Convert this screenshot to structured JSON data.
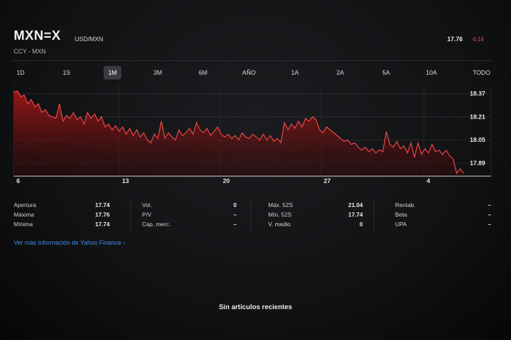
{
  "header": {
    "symbol": "MXN=X",
    "pair": "USD/MXN",
    "subtitle": "CCY - MXN",
    "price": "17.76",
    "change": "-0.14",
    "change_color": "#e05555"
  },
  "ranges": {
    "items": [
      "1D",
      "1S",
      "1M",
      "3M",
      "6M",
      "AÑO",
      "1A",
      "2A",
      "5A",
      "10A",
      "TODO"
    ],
    "selected": "1M"
  },
  "chart_data": {
    "type": "area",
    "x_ticks": [
      "6",
      "13",
      "20",
      "27",
      "4"
    ],
    "y_ticks": [
      "18.37",
      "18.21",
      "18.05",
      "17.89"
    ],
    "ylim": [
      17.8,
      18.43
    ],
    "color": "#e03030",
    "values": [
      18.38,
      18.39,
      18.35,
      18.36,
      18.3,
      18.33,
      18.28,
      18.3,
      18.24,
      18.26,
      18.22,
      18.21,
      18.2,
      18.3,
      18.18,
      18.22,
      18.2,
      18.24,
      18.19,
      18.21,
      18.16,
      18.24,
      18.2,
      18.23,
      18.18,
      18.21,
      18.14,
      18.16,
      18.12,
      18.15,
      18.11,
      18.14,
      18.09,
      18.13,
      18.08,
      18.12,
      18.07,
      18.1,
      18.05,
      18.03,
      18.09,
      18.06,
      18.18,
      18.06,
      18.1,
      18.07,
      18.05,
      18.12,
      18.08,
      18.1,
      18.13,
      18.09,
      18.17,
      18.12,
      18.1,
      18.13,
      18.08,
      18.11,
      18.14,
      18.09,
      18.07,
      18.09,
      18.06,
      18.08,
      18.05,
      18.1,
      18.07,
      18.06,
      18.09,
      18.07,
      18.05,
      18.09,
      18.05,
      18.08,
      18.04,
      18.06,
      18.03,
      18.17,
      18.12,
      18.16,
      18.13,
      18.18,
      18.14,
      18.2,
      18.18,
      18.21,
      18.19,
      18.12,
      18.1,
      18.14,
      18.12,
      18.1,
      18.08,
      18.06,
      18.04,
      18.05,
      18.02,
      18.03,
      18.0,
      17.98,
      18.0,
      17.97,
      17.99,
      17.96,
      17.98,
      17.97,
      18.11,
      18.02,
      18.0,
      18.04,
      17.99,
      18.01,
      17.96,
      18.03,
      17.93,
      18.03,
      17.95,
      17.99,
      17.96,
      18.02,
      17.97,
      17.98,
      17.95,
      17.98,
      17.94,
      17.92,
      17.82,
      17.85,
      17.82
    ]
  },
  "stats": {
    "col1": [
      {
        "label": "Apertura",
        "value": "17.74"
      },
      {
        "label": "Máxima",
        "value": "17.76"
      },
      {
        "label": "Mínima",
        "value": "17.74"
      }
    ],
    "col2": [
      {
        "label": "Vol.",
        "value": "0"
      },
      {
        "label": "P/V",
        "value": "–"
      },
      {
        "label": "Cap. merc.",
        "value": "–"
      }
    ],
    "col3": [
      {
        "label": "Máx. 52S",
        "value": "21.04"
      },
      {
        "label": "Mín. 52S",
        "value": "17.74"
      },
      {
        "label": "V. medio",
        "value": "0"
      }
    ],
    "col4": [
      {
        "label": "Rentab.",
        "value": "–"
      },
      {
        "label": "Beta",
        "value": "–"
      },
      {
        "label": "UPA",
        "value": "–"
      }
    ]
  },
  "more_link": "Ver más información de Yahoo Finance ›",
  "no_articles": "Sin artículos recientes"
}
